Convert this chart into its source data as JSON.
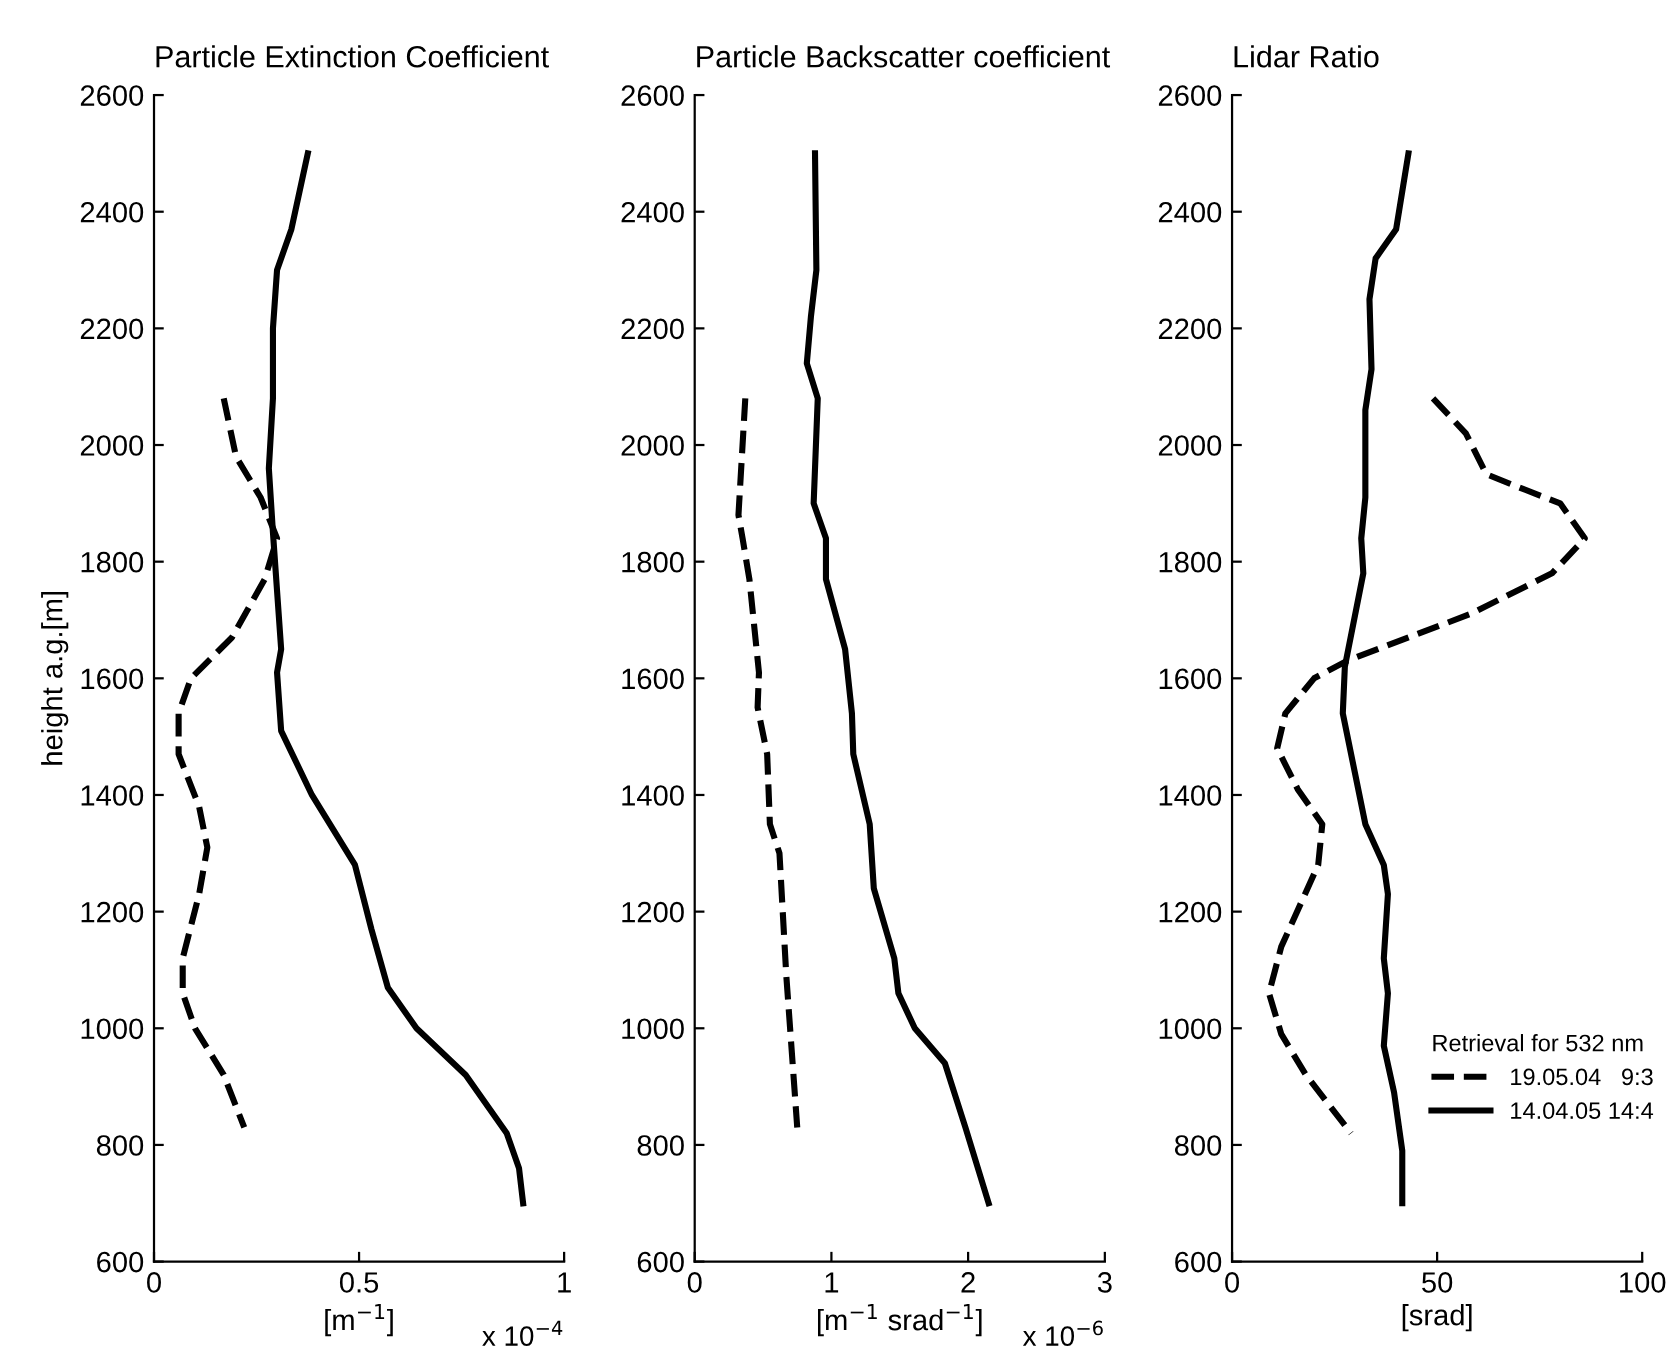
{
  "chart_data": [
    {
      "type": "line",
      "title": "Particle Extinction Coefficient",
      "xlabel": "[m$^{−1}$]",
      "ylabel": "height a.g.[m]",
      "annotations": [
        "x 10$^{−4}$"
      ],
      "xlim": [
        0,
        1
      ],
      "xticks": [
        0,
        0.5,
        1
      ],
      "ylim": [
        600,
        2600
      ],
      "yticks": [
        600,
        800,
        1000,
        1200,
        1400,
        1600,
        1800,
        2000,
        2200,
        2400,
        2600
      ],
      "grid": false,
      "series": [
        {
          "color": "#000000",
          "line_style": "dashed",
          "x": [
            0.17,
            0.2,
            0.26,
            0.3,
            0.27,
            0.19,
            0.09,
            0.06,
            0.06,
            0.11,
            0.13,
            0.11,
            0.07,
            0.07,
            0.1,
            0.17,
            0.22
          ],
          "values": [
            2080,
            1980,
            1910,
            1840,
            1770,
            1670,
            1600,
            1540,
            1470,
            1380,
            1310,
            1230,
            1120,
            1060,
            1000,
            920,
            830
          ]
        },
        {
          "color": "#000000",
          "line_style": "solid",
          "x": [
            0.375,
            0.335,
            0.3,
            0.29,
            0.29,
            0.28,
            0.29,
            0.31,
            0.3,
            0.31,
            0.385,
            0.49,
            0.53,
            0.57,
            0.64,
            0.76,
            0.86,
            0.89,
            0.9
          ],
          "values": [
            2500,
            2370,
            2300,
            2200,
            2080,
            1960,
            1850,
            1650,
            1610,
            1510,
            1400,
            1280,
            1170,
            1070,
            1000,
            920,
            820,
            760,
            700
          ]
        }
      ]
    },
    {
      "type": "line",
      "title": "Particle Backscatter coefficient",
      "xlabel": "[m$^{−1}$ srad$^{−1}$]",
      "annotations": [
        "x 10$^{−6}$"
      ],
      "xlim": [
        0,
        3
      ],
      "xticks": [
        0,
        1,
        2,
        3
      ],
      "ylim": [
        600,
        2600
      ],
      "yticks": [
        600,
        800,
        1000,
        1200,
        1400,
        1600,
        1800,
        2000,
        2200,
        2400,
        2600
      ],
      "grid": false,
      "series": [
        {
          "color": "#000000",
          "line_style": "dashed",
          "x": [
            0.37,
            0.32,
            0.35,
            0.4,
            0.47,
            0.46,
            0.53,
            0.55,
            0.62,
            0.67,
            0.75
          ],
          "values": [
            2080,
            1880,
            1840,
            1770,
            1610,
            1550,
            1470,
            1350,
            1300,
            1090,
            830
          ]
        },
        {
          "color": "#000000",
          "line_style": "solid",
          "x": [
            0.88,
            0.89,
            0.85,
            0.82,
            0.9,
            0.88,
            0.87,
            0.96,
            0.96,
            1.1,
            1.15,
            1.16,
            1.28,
            1.31,
            1.46,
            1.49,
            1.61,
            1.83,
            1.98,
            2.15
          ],
          "values": [
            2500,
            2300,
            2220,
            2140,
            2080,
            1960,
            1900,
            1840,
            1770,
            1650,
            1540,
            1470,
            1350,
            1240,
            1120,
            1060,
            1000,
            940,
            830,
            700
          ]
        }
      ]
    },
    {
      "type": "line",
      "title": "Lidar Ratio",
      "xlabel": "[srad]",
      "legend_title": "Retrieval for 532 nm",
      "legend": "bottom right",
      "xlim": [
        0,
        100
      ],
      "xticks": [
        0,
        50,
        100
      ],
      "ylim": [
        600,
        2600
      ],
      "yticks": [
        600,
        800,
        1000,
        1200,
        1400,
        1600,
        1800,
        2000,
        2200,
        2400,
        2600
      ],
      "grid": false,
      "series": [
        {
          "name": "19.05.04   9:3",
          "color": "#000000",
          "line_style": "dashed",
          "x": [
            49,
            57,
            62,
            69,
            80,
            86,
            78,
            58,
            28,
            20,
            13,
            11,
            16,
            22,
            21,
            12,
            9,
            12,
            18,
            29
          ],
          "values": [
            2080,
            2020,
            1950,
            1930,
            1900,
            1840,
            1780,
            1710,
            1630,
            1600,
            1540,
            1480,
            1410,
            1350,
            1280,
            1140,
            1060,
            990,
            920,
            820
          ]
        },
        {
          "name": "14.04.05 14:4",
          "color": "#000000",
          "line_style": "solid",
          "x": [
            43,
            40,
            35,
            33.5,
            34,
            32.5,
            32.5,
            31.5,
            32,
            27.5,
            27,
            32.5,
            37,
            38,
            37,
            38,
            37,
            39.5,
            41.5,
            41.5
          ],
          "values": [
            2500,
            2370,
            2320,
            2250,
            2130,
            2060,
            1910,
            1840,
            1780,
            1620,
            1540,
            1350,
            1280,
            1230,
            1120,
            1060,
            970,
            890,
            790,
            700
          ]
        }
      ]
    }
  ]
}
